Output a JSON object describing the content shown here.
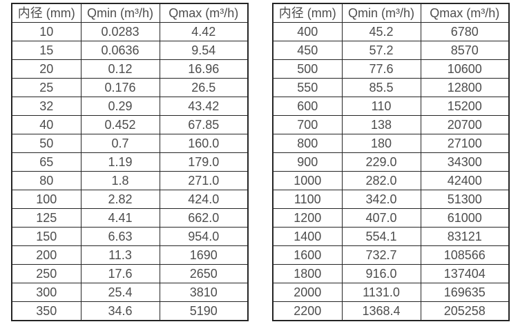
{
  "page": {
    "background_color": "#ffffff",
    "border_color": "#242424",
    "text_color": "#4d4d4d"
  },
  "tables": [
    {
      "name": "flow-rate-table-small-diameters",
      "headers": [
        "内径 (mm)",
        "Qmin (m³/h)",
        "Qmax (m³/h)"
      ],
      "rows": [
        [
          "10",
          "0.0283",
          "4.42"
        ],
        [
          "15",
          "0.0636",
          "9.54"
        ],
        [
          "20",
          "0.12",
          "16.96"
        ],
        [
          "25",
          "0.176",
          "26.5"
        ],
        [
          "32",
          "0.29",
          "43.42"
        ],
        [
          "40",
          "0.452",
          "67.85"
        ],
        [
          "50",
          "0.7",
          "160.0"
        ],
        [
          "65",
          "1.19",
          "179.0"
        ],
        [
          "80",
          "1.8",
          "271.0"
        ],
        [
          "100",
          "2.82",
          "424.0"
        ],
        [
          "125",
          "4.41",
          "662.0"
        ],
        [
          "150",
          "6.63",
          "954.0"
        ],
        [
          "200",
          "11.3",
          "1690"
        ],
        [
          "250",
          "17.6",
          "2650"
        ],
        [
          "300",
          "25.4",
          "3810"
        ],
        [
          "350",
          "34.6",
          "5190"
        ]
      ]
    },
    {
      "name": "flow-rate-table-large-diameters",
      "headers": [
        "内径 (mm)",
        "Qmin (m³/h)",
        "Qmax (m³/h)"
      ],
      "rows": [
        [
          "400",
          "45.2",
          "6780"
        ],
        [
          "450",
          "57.2",
          "8570"
        ],
        [
          "500",
          "77.6",
          "10600"
        ],
        [
          "550",
          "85.5",
          "12800"
        ],
        [
          "600",
          "110",
          "15200"
        ],
        [
          "700",
          "138",
          "20700"
        ],
        [
          "800",
          "180",
          "27100"
        ],
        [
          "900",
          "229.0",
          "34300"
        ],
        [
          "1000",
          "282.0",
          "42400"
        ],
        [
          "1100",
          "342.0",
          "51300"
        ],
        [
          "1200",
          "407.0",
          "61000"
        ],
        [
          "1400",
          "554.1",
          "83121"
        ],
        [
          "1600",
          "732.7",
          "108566"
        ],
        [
          "1800",
          "916.0",
          "137404"
        ],
        [
          "2000",
          "1131.0",
          "169635"
        ],
        [
          "2200",
          "1368.4",
          "205258"
        ]
      ]
    }
  ]
}
